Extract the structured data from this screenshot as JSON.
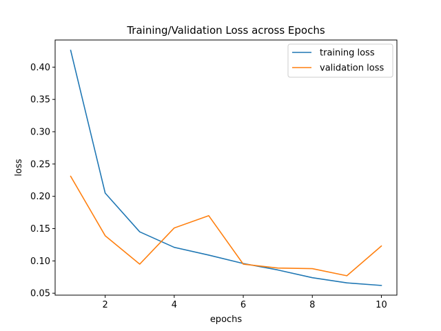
{
  "chart_data": {
    "type": "line",
    "title": "Training/Validation Loss across Epochs",
    "xlabel": "epochs",
    "ylabel": "loss",
    "xlim": [
      0.55,
      10.45
    ],
    "ylim": [
      0.047,
      0.442
    ],
    "x_ticks": [
      2,
      4,
      6,
      8,
      10
    ],
    "x_tick_labels": [
      "2",
      "4",
      "6",
      "8",
      "10"
    ],
    "y_ticks": [
      0.05,
      0.1,
      0.15,
      0.2,
      0.25,
      0.3,
      0.35,
      0.4
    ],
    "y_tick_labels": [
      "0.05",
      "0.10",
      "0.15",
      "0.20",
      "0.25",
      "0.30",
      "0.35",
      "0.40"
    ],
    "grid": false,
    "legend_position": "top-right",
    "x": [
      1,
      2,
      3,
      4,
      5,
      6,
      7,
      8,
      9,
      10
    ],
    "series": [
      {
        "name": "training loss",
        "color": "#1f77b4",
        "values": [
          0.426,
          0.205,
          0.145,
          0.121,
          0.109,
          0.096,
          0.086,
          0.074,
          0.066,
          0.062
        ]
      },
      {
        "name": "validation loss",
        "color": "#ff7f0e",
        "values": [
          0.231,
          0.139,
          0.095,
          0.151,
          0.17,
          0.095,
          0.089,
          0.088,
          0.077,
          0.123
        ]
      }
    ]
  }
}
